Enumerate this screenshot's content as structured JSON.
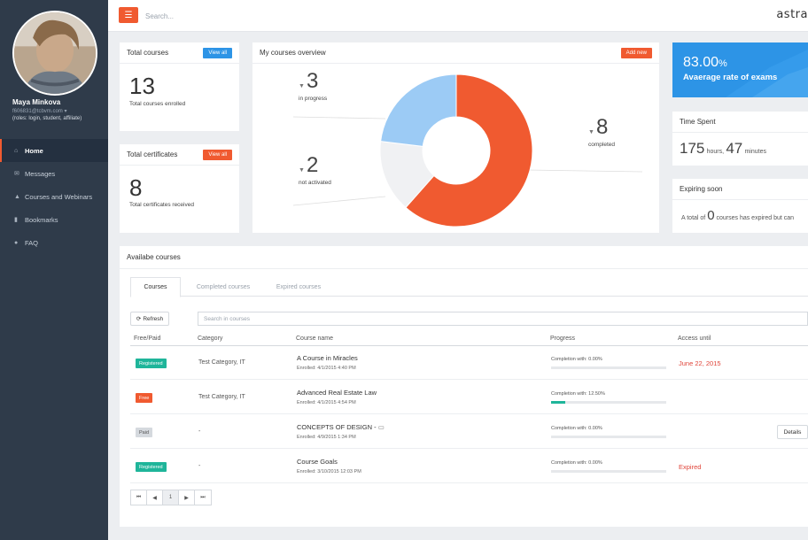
{
  "user": {
    "name": "Maya Minkova",
    "email": "f606831@tcbvm.com",
    "roles": "(roles: login, student, affiliate)"
  },
  "nav": {
    "items": [
      {
        "label": "Home",
        "icon": "home-icon",
        "glyph": "⌂"
      },
      {
        "label": "Messages",
        "icon": "envelope-icon",
        "glyph": "✉"
      },
      {
        "label": "Courses and Webinars",
        "icon": "graduation-cap-icon",
        "glyph": "▲"
      },
      {
        "label": "Bookmarks",
        "icon": "bookmark-icon",
        "glyph": "▮"
      },
      {
        "label": "FAQ",
        "icon": "users-icon",
        "glyph": "●"
      }
    ]
  },
  "topbar": {
    "menu_glyph": "☰",
    "search_placeholder": "Search...",
    "brand": "astra"
  },
  "total_courses": {
    "title": "Total courses",
    "button": "View all",
    "value": "13",
    "label": "Total courses enrolled"
  },
  "total_certificates": {
    "title": "Total certificates",
    "button": "View all",
    "value": "8",
    "label": "Total certificates received"
  },
  "overview": {
    "title": "My courses overview",
    "button": "Add new",
    "in_progress": {
      "value": "3",
      "label": "in progress"
    },
    "not_activated": {
      "value": "2",
      "label": "not activated"
    },
    "completed": {
      "value": "8",
      "label": "completed"
    },
    "colors": {
      "completed": "#f05a30",
      "not_activated": "#f0f1f3",
      "in_progress": "#9ccbf5"
    }
  },
  "exams": {
    "value": "83.00",
    "unit": "%",
    "label": "Avaerage rate of exams"
  },
  "time_spent": {
    "title": "Time Spent",
    "hours": "175",
    "hours_unit": "hours,",
    "minutes": "47",
    "minutes_unit": "minutes"
  },
  "expiring": {
    "title": "Expiring soon",
    "prefix": "A total of",
    "count": "0",
    "suffix": "courses has expired but can"
  },
  "available": {
    "title": "Availabe courses",
    "tabs": [
      "Courses",
      "Completed courses",
      "Expired courses"
    ],
    "refresh": "Refresh",
    "search_placeholder": "Search in courses",
    "columns": [
      "Free/Paid",
      "Category",
      "Course name",
      "Progress",
      "Access until"
    ],
    "rows": [
      {
        "badge": "Registered",
        "badge_color": "#1fb59a",
        "category": "Test Category, IT",
        "name": "A Course in Miracles",
        "enrolled": "Enrolled: 4/1/2015 4:40 PM",
        "progress_label": "Completion with: 0.00%",
        "progress": 0.0,
        "access": "June 22, 2015",
        "details": ""
      },
      {
        "badge": "Free",
        "badge_color": "#f05a30",
        "category": "Test Category, IT",
        "name": "Advanced Real Estate Law",
        "enrolled": "Enrolled: 4/1/2015 4:54 PM",
        "progress_label": "Completion with: 12.50%",
        "progress": 12.5,
        "access": "",
        "details": ""
      },
      {
        "badge": "Paid",
        "badge_color": "#d5d9de",
        "category": "-",
        "name": "CONCEPTS OF DESIGN -",
        "enrolled": "Enrolled: 4/9/2015 1:34 PM",
        "progress_label": "Completion with: 0.00%",
        "progress": 0.0,
        "access": "",
        "details": "Details"
      },
      {
        "badge": "Registered",
        "badge_color": "#1fb59a",
        "category": "-",
        "name": "Course Goals",
        "enrolled": "Enrolled: 3/10/2015 12:03 PM",
        "progress_label": "Completion with: 0.00%",
        "progress": 0.0,
        "access": "Expired",
        "details": ""
      }
    ],
    "pager": [
      "⏮",
      "◀",
      "1",
      "▶",
      "⏭"
    ]
  }
}
